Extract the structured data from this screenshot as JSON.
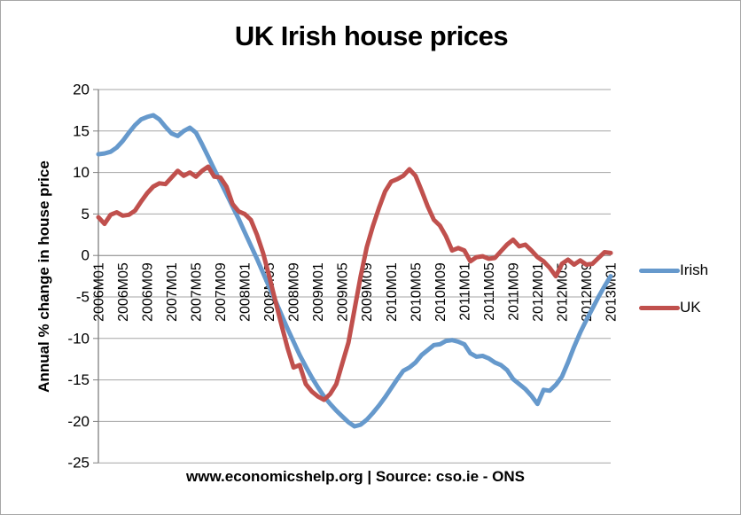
{
  "title": "UK Irish house prices",
  "caption": "www.economicshelp.org | Source: cso.ie - ONS",
  "legend": {
    "items": [
      {
        "label": "Irish",
        "color": "#6699CC"
      },
      {
        "label": "UK",
        "color": "#C0504D"
      }
    ]
  },
  "chart_data": {
    "type": "line",
    "title": "UK Irish house prices",
    "xlabel": "",
    "ylabel": "Annual % change in house price",
    "ylim": [
      -25,
      20
    ],
    "ytick_step": 5,
    "grid": true,
    "legend_position": "right",
    "grid_color": "#A6A6A6",
    "axis_color": "#808080",
    "months_total": 85,
    "x_tick_every": 4,
    "x_tick_labels": [
      "2006M01",
      "2006M05",
      "2006M09",
      "2007M01",
      "2007M05",
      "2007M09",
      "2008M01",
      "2008M05",
      "2008M09",
      "2009M01",
      "2009M05",
      "2009M09",
      "2010M01",
      "2010M05",
      "2010M09",
      "2011M01",
      "2011M05",
      "2011M09",
      "2012M01",
      "2012M05",
      "2012M09",
      "2013M01"
    ],
    "series": [
      {
        "name": "Irish",
        "color": "#6699CC",
        "values": [
          12.2,
          12.3,
          12.5,
          13.0,
          13.8,
          14.8,
          15.7,
          16.4,
          16.7,
          16.9,
          16.4,
          15.5,
          14.7,
          14.4,
          15.0,
          15.4,
          14.8,
          13.4,
          11.9,
          10.4,
          8.9,
          7.4,
          5.9,
          4.4,
          2.8,
          1.2,
          -0.4,
          -2.1,
          -3.8,
          -5.4,
          -7.1,
          -8.8,
          -10.4,
          -12.0,
          -13.4,
          -14.7,
          -15.9,
          -17.0,
          -17.9,
          -18.7,
          -19.4,
          -20.1,
          -20.6,
          -20.4,
          -19.8,
          -19.0,
          -18.1,
          -17.1,
          -16.0,
          -14.9,
          -13.9,
          -13.5,
          -12.9,
          -12.0,
          -11.4,
          -10.8,
          -10.7,
          -10.3,
          -10.2,
          -10.4,
          -10.7,
          -11.8,
          -12.2,
          -12.1,
          -12.4,
          -12.9,
          -13.2,
          -13.8,
          -14.9,
          -15.5,
          -16.1,
          -16.9,
          -17.9,
          -16.2,
          -16.3,
          -15.6,
          -14.6,
          -12.9,
          -11.0,
          -9.3,
          -7.8,
          -6.4,
          -5.0,
          -3.7,
          -2.5
        ]
      },
      {
        "name": "UK",
        "color": "#C0504D",
        "values": [
          4.6,
          3.8,
          4.9,
          5.2,
          4.8,
          4.9,
          5.4,
          6.5,
          7.5,
          8.3,
          8.7,
          8.6,
          9.4,
          10.2,
          9.6,
          10.0,
          9.5,
          10.2,
          10.7,
          9.5,
          9.4,
          8.3,
          6.2,
          5.3,
          5.0,
          4.3,
          2.5,
          0.3,
          -2.5,
          -5.4,
          -8.3,
          -11.1,
          -13.5,
          -13.2,
          -15.5,
          -16.4,
          -17.0,
          -17.4,
          -16.7,
          -15.5,
          -13.0,
          -10.5,
          -6.5,
          -2.5,
          1.0,
          3.5,
          5.7,
          7.7,
          8.9,
          9.2,
          9.6,
          10.4,
          9.6,
          7.8,
          5.9,
          4.3,
          3.6,
          2.3,
          0.6,
          0.9,
          0.6,
          -0.7,
          -0.2,
          -0.1,
          -0.4,
          -0.3,
          0.5,
          1.3,
          1.9,
          1.1,
          1.3,
          0.6,
          -0.2,
          -0.7,
          -1.5,
          -2.5,
          -1.0,
          -0.5,
          -1.1,
          -0.6,
          -1.1,
          -1.0,
          -0.3,
          0.4,
          0.3
        ]
      }
    ]
  }
}
